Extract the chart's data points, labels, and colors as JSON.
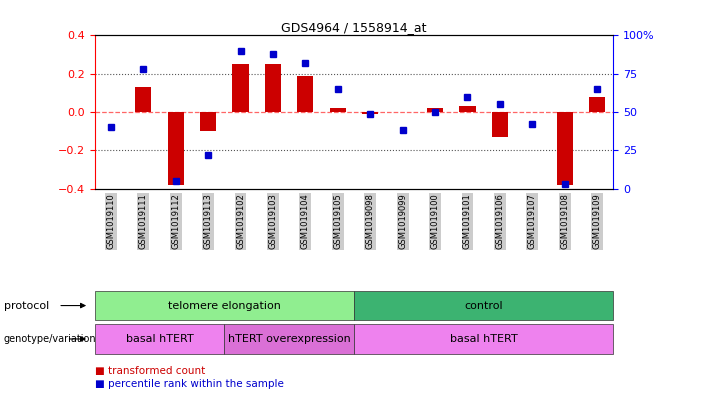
{
  "title": "GDS4964 / 1558914_at",
  "samples": [
    "GSM1019110",
    "GSM1019111",
    "GSM1019112",
    "GSM1019113",
    "GSM1019102",
    "GSM1019103",
    "GSM1019104",
    "GSM1019105",
    "GSM1019098",
    "GSM1019099",
    "GSM1019100",
    "GSM1019101",
    "GSM1019106",
    "GSM1019107",
    "GSM1019108",
    "GSM1019109"
  ],
  "red_values": [
    0.0,
    0.13,
    -0.38,
    -0.1,
    0.25,
    0.25,
    0.19,
    0.02,
    -0.01,
    0.0,
    0.02,
    0.03,
    -0.13,
    0.0,
    -0.38,
    0.08
  ],
  "blue_values_pct": [
    40,
    78,
    5,
    22,
    90,
    88,
    82,
    65,
    49,
    38,
    50,
    60,
    55,
    42,
    3,
    65
  ],
  "ylim_left": [
    -0.4,
    0.4
  ],
  "ylim_right": [
    0,
    100
  ],
  "yticks_left": [
    -0.4,
    -0.2,
    0.0,
    0.2,
    0.4
  ],
  "yticks_right": [
    0,
    25,
    50,
    75,
    100
  ],
  "ytick_labels_right": [
    "0",
    "25",
    "50",
    "75",
    "100%"
  ],
  "hline_dotted_values": [
    0.2,
    -0.2
  ],
  "protocol_groups": [
    {
      "label": "telomere elongation",
      "start": 0,
      "end": 8,
      "color": "#90ee90"
    },
    {
      "label": "control",
      "start": 8,
      "end": 16,
      "color": "#3cb371"
    }
  ],
  "genotype_groups": [
    {
      "label": "basal hTERT",
      "start": 0,
      "end": 4,
      "color": "#ee82ee"
    },
    {
      "label": "hTERT overexpression",
      "start": 4,
      "end": 8,
      "color": "#da70d6"
    },
    {
      "label": "basal hTERT",
      "start": 8,
      "end": 16,
      "color": "#ee82ee"
    }
  ],
  "red_color": "#cc0000",
  "blue_color": "#0000cc",
  "zero_line_color": "#ff6666",
  "dotted_line_color": "#555555",
  "bar_width": 0.5,
  "bg_color": "#ffffff",
  "tick_bg_color": "#cccccc",
  "left_label_color": "#000000",
  "proto_label_color": "#000000",
  "geno_label_color": "#000000"
}
